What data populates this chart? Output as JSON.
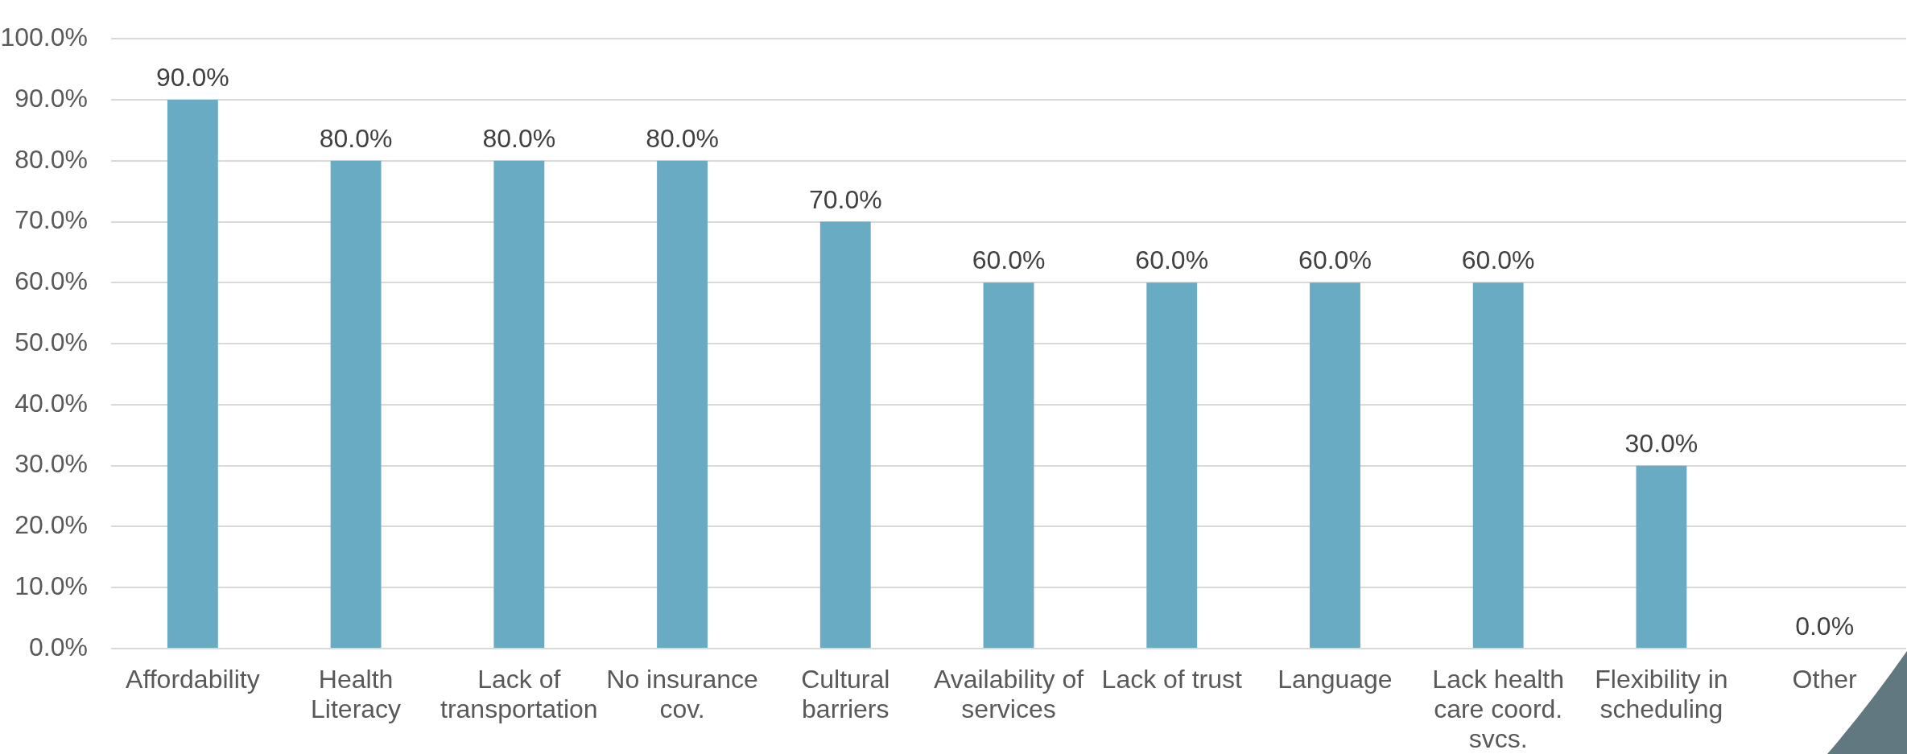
{
  "chart_data": {
    "type": "bar",
    "categories": [
      "Affordability",
      "Health Literacy",
      "Lack of transportation",
      "No insurance cov.",
      "Cultural barriers",
      "Availability of services",
      "Lack of trust",
      "Language",
      "Lack health care coord. svcs.",
      "Flexibility in scheduling",
      "Other"
    ],
    "values": [
      90,
      80,
      80,
      80,
      70,
      60,
      60,
      60,
      60,
      30,
      0
    ],
    "value_labels": [
      "90.0%",
      "80.0%",
      "80.0%",
      "80.0%",
      "70.0%",
      "60.0%",
      "60.0%",
      "60.0%",
      "60.0%",
      "30.0%",
      "0.0%"
    ],
    "color": "#6aabc4",
    "ylim": [
      0,
      100
    ],
    "yticks": [
      {
        "value": 0,
        "label": "0.0%"
      },
      {
        "value": 10,
        "label": "10.0%"
      },
      {
        "value": 20,
        "label": "20.0%"
      },
      {
        "value": 30,
        "label": "30.0%"
      },
      {
        "value": 40,
        "label": "40.0%"
      },
      {
        "value": 50,
        "label": "50.0%"
      },
      {
        "value": 60,
        "label": "60.0%"
      },
      {
        "value": 70,
        "label": "70.0%"
      },
      {
        "value": 80,
        "label": "80.0%"
      },
      {
        "value": 90,
        "label": "90.0%"
      },
      {
        "value": 100,
        "label": "100.0%"
      }
    ],
    "grid": "y"
  }
}
